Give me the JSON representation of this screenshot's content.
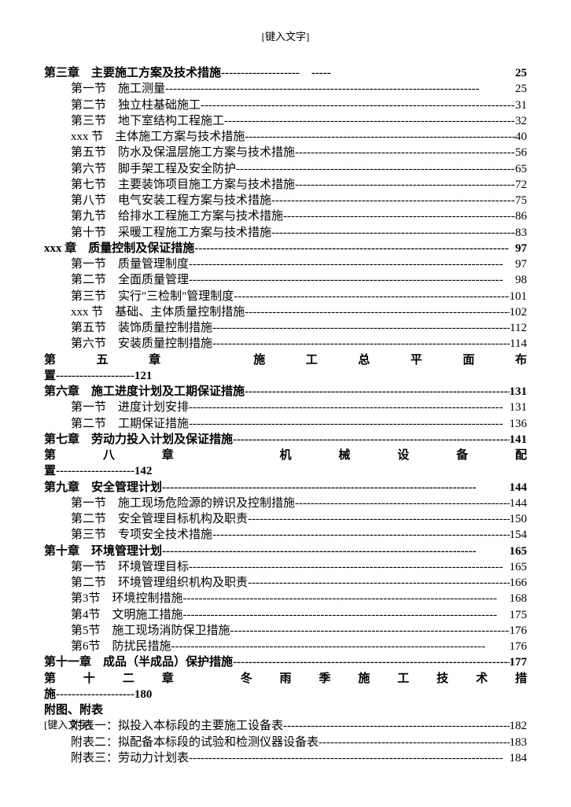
{
  "header": "[键入文字]",
  "footer": "[键入文字]",
  "toc": [
    {
      "type": "chapter",
      "label": "第三章　主要施工方案及技术措施",
      "page": "25",
      "gap": true
    },
    {
      "type": "section",
      "label": "第一节　施工测量",
      "page": "25"
    },
    {
      "type": "section",
      "label": "第二节　独立柱基础施工",
      "page": "31"
    },
    {
      "type": "section",
      "label": "第三节　地下室结构工程施工",
      "page": "32"
    },
    {
      "type": "section",
      "label": "xxx 节　主体施工方案与技术措施",
      "page": "40"
    },
    {
      "type": "section",
      "label": "第五节　防水及保温层施工方案与技术措施",
      "page": "56"
    },
    {
      "type": "section",
      "label": "第六节　脚手架工程及安全防护",
      "page": "65"
    },
    {
      "type": "section",
      "label": "第七节　主要装饰项目施工方案与技术措施",
      "page": "72"
    },
    {
      "type": "section",
      "label": "第八节　电气安装工程方案与技术措施",
      "page": "75"
    },
    {
      "type": "section",
      "label": "第九节　给排水工程施工方案与技术措施",
      "page": "86"
    },
    {
      "type": "section",
      "label": "第十节　采暖工程施工方案与技术措施",
      "page": "83"
    },
    {
      "type": "chapter",
      "label": "xxx 章　质量控制及保证措施",
      "page": "97"
    },
    {
      "type": "section",
      "label": "第一节　质量管理制度",
      "page": "97"
    },
    {
      "type": "section",
      "label": "第二节　全面质量管理",
      "page": "98"
    },
    {
      "type": "section",
      "label": "第三节　实行\"三检制\"管理制度",
      "page": "101"
    },
    {
      "type": "section",
      "label": "xxx 节　基础、主体质量控制措施",
      "page": "102"
    },
    {
      "type": "section",
      "label": "第五节　装饰质量控制措施",
      "page": "112"
    },
    {
      "type": "section",
      "label": "第六节　安装质量控制措施",
      "page": "114"
    },
    {
      "type": "chapter-wrap",
      "line1": "第五章　施工总平面布",
      "line2": "置",
      "page": "121"
    },
    {
      "type": "chapter",
      "label": "第六章　施工进度计划及工期保证措施",
      "page": "131"
    },
    {
      "type": "section",
      "label": "第一节　进度计划安排",
      "page": "131"
    },
    {
      "type": "section",
      "label": "第二节　工期保证措施",
      "page": "136"
    },
    {
      "type": "chapter",
      "label": "第七章　劳动力投入计划及保证措施",
      "page": "141"
    },
    {
      "type": "chapter-wrap",
      "line1": "第八章　机械设备配",
      "line2": "置",
      "page": "142"
    },
    {
      "type": "chapter",
      "label": "第九章　安全管理计划",
      "page": "144"
    },
    {
      "type": "section",
      "label": "第一节　施工现场危险源的辨识及控制措施",
      "page": "144"
    },
    {
      "type": "section",
      "label": "第二节　安全管理目标机构及职责",
      "page": "150"
    },
    {
      "type": "section",
      "label": "第三节　专项安全技术措施",
      "page": "154"
    },
    {
      "type": "chapter",
      "label": "第十章　环境管理计划",
      "page": "165"
    },
    {
      "type": "section",
      "label": "第一节　环境管理目标",
      "page": "165"
    },
    {
      "type": "section",
      "label": "第二节　环境管理组织机构及职责",
      "page": "166"
    },
    {
      "type": "section",
      "label": "第3节　环境控制措施",
      "page": "168"
    },
    {
      "type": "section",
      "label": "第4节　文明施工措施",
      "page": "175"
    },
    {
      "type": "section",
      "label": "第5节　施工现场消防保卫措施",
      "page": "176"
    },
    {
      "type": "section",
      "label": "第6节　防扰民措施",
      "page": "176"
    },
    {
      "type": "chapter",
      "label": "第十一章　成品（半成品）保护措施",
      "page": "177"
    },
    {
      "type": "chapter-wrap",
      "line1": "第十二章　冬雨季施工技术措",
      "line2": "施",
      "page": "180"
    },
    {
      "type": "attach-header",
      "label": "附图、附表"
    },
    {
      "type": "section",
      "label": "附表一：拟投入本标段的主要施工设备表",
      "page": "182"
    },
    {
      "type": "section",
      "label": "附表二：拟配备本标段的试验和检测仪器设备表",
      "page": "183"
    },
    {
      "type": "section",
      "label": "附表三：劳动力计划表",
      "page": "184"
    }
  ],
  "dash_fill": "--------------------------------------------------------------------------------",
  "gap_dash": "--------------------　-----"
}
